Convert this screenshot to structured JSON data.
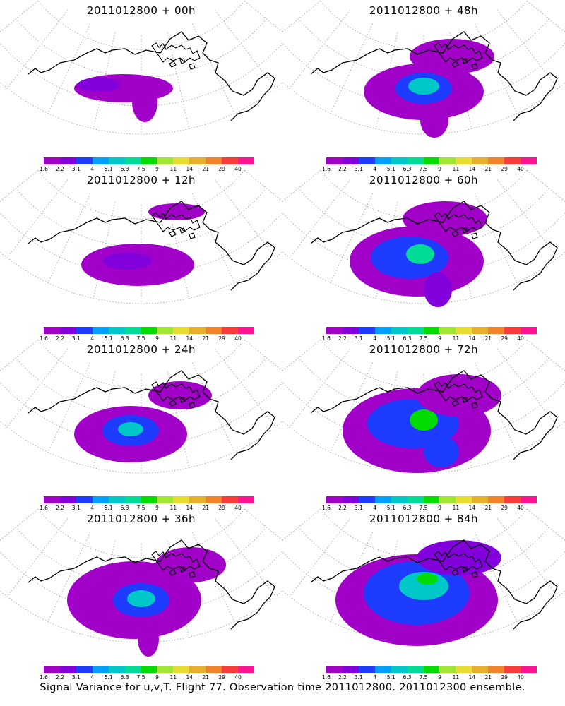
{
  "colors": {
    "scale": [
      "#a000c8",
      "#8200dc",
      "#1e3cff",
      "#00a0ff",
      "#00c8c8",
      "#00dc96",
      "#00dc00",
      "#a0e632",
      "#e6dc32",
      "#e6af2d",
      "#f08228",
      "#fa3c3c",
      "#ff1493"
    ],
    "coast": "#000000",
    "grid": "#9a9a9a"
  },
  "colorbar": {
    "tick_labels": [
      "1.6",
      "2.2",
      "3.1",
      "4",
      "5.1",
      "6.3",
      "7.5",
      "9",
      "11",
      "14",
      "21",
      "29",
      "40"
    ]
  },
  "panels": [
    {
      "title": "2011012800 + 00h"
    },
    {
      "title": "2011012800 + 48h"
    },
    {
      "title": "2011012800 + 12h"
    },
    {
      "title": "2011012800 + 60h"
    },
    {
      "title": "2011012800 + 24h"
    },
    {
      "title": "2011012800 + 72h"
    },
    {
      "title": "2011012800 + 36h"
    },
    {
      "title": "2011012800 + 84h"
    }
  ],
  "footer": "Signal Variance for u,v,T. Flight 77. Observation time 2011012800. 2011012300 ensemble."
}
